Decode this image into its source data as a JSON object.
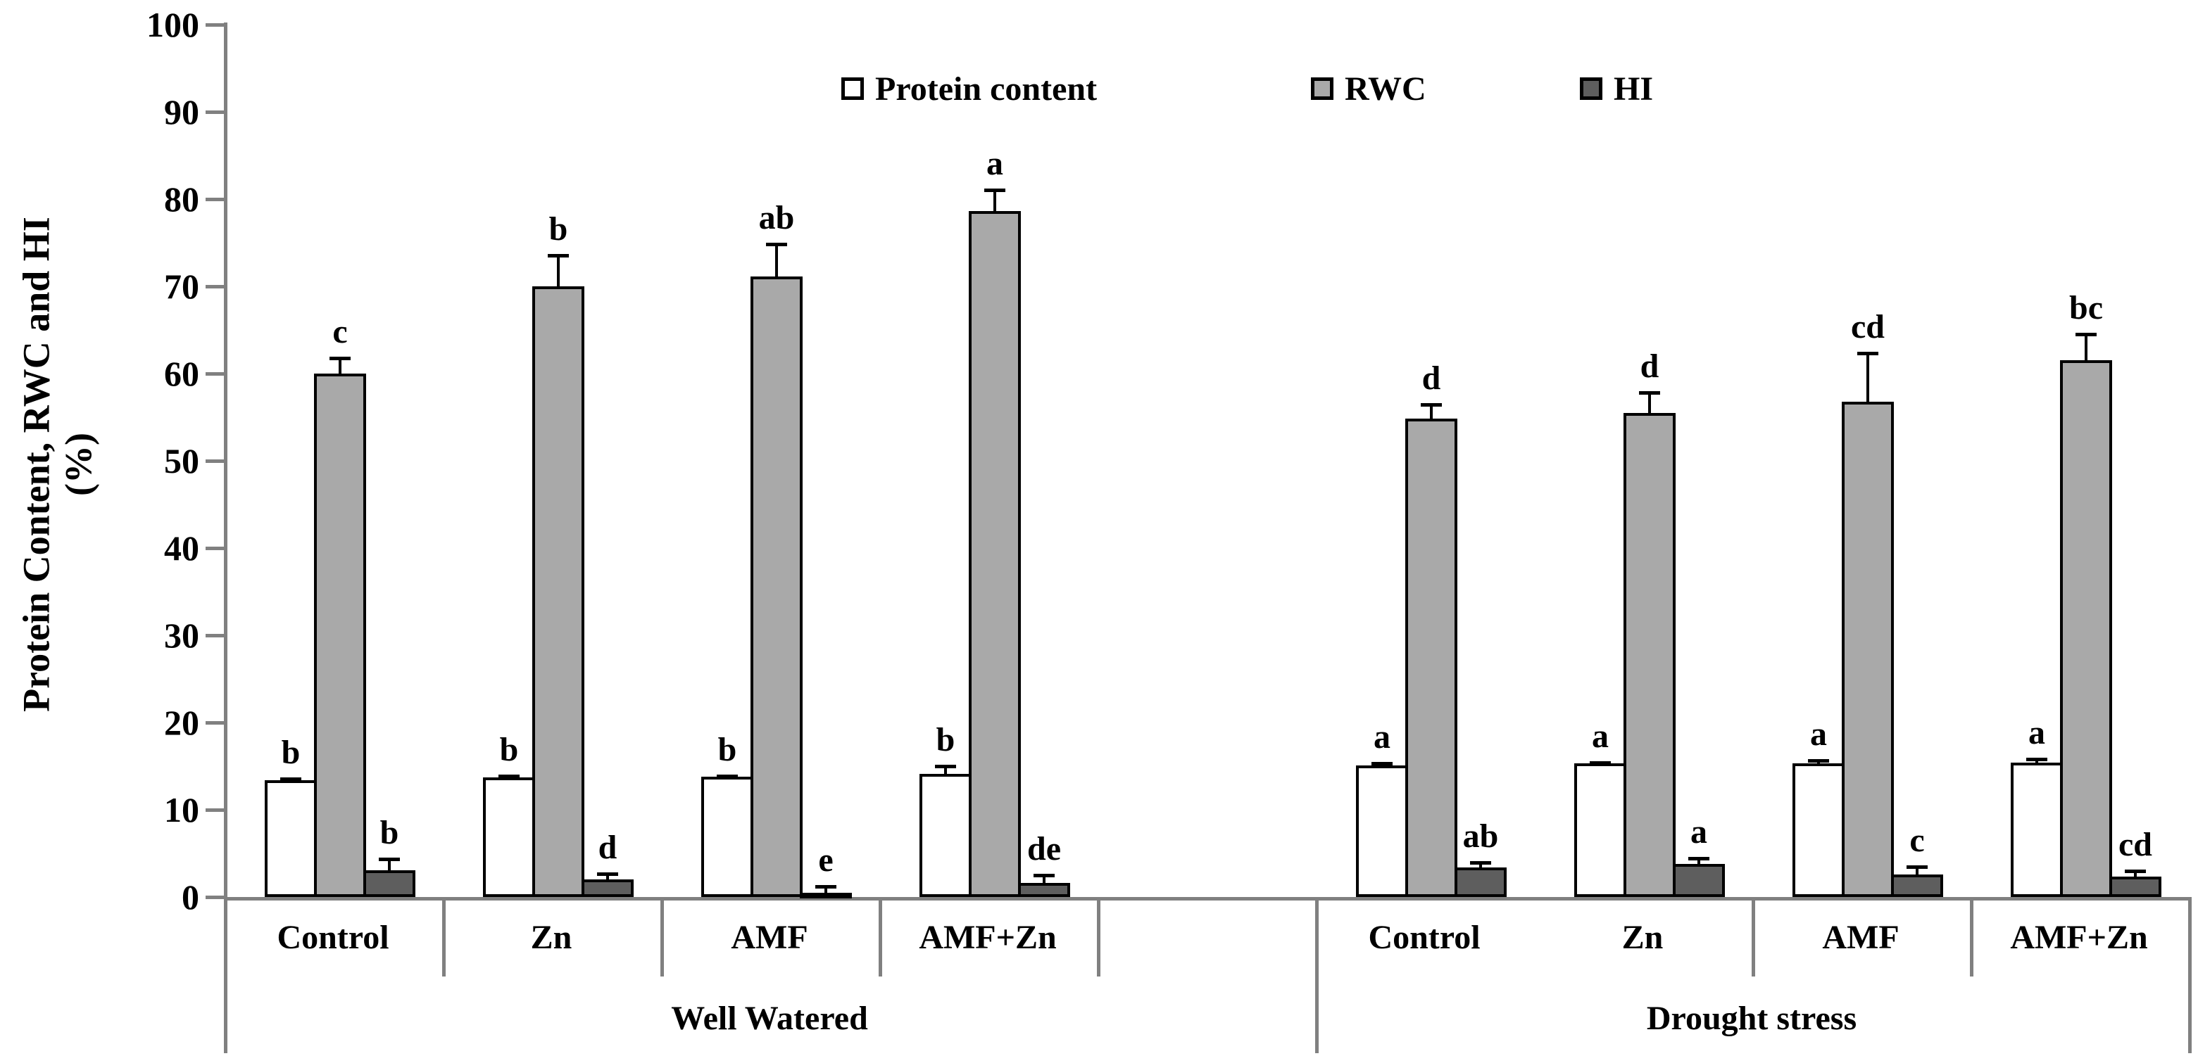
{
  "chart_data": {
    "type": "bar",
    "title": "",
    "ylabel": "Protein Content, RWC and HI",
    "ylabel_unit": "(%)",
    "ylim": [
      0,
      100
    ],
    "ytick_step": 10,
    "yticks": [
      0,
      10,
      20,
      30,
      40,
      50,
      60,
      70,
      80,
      90,
      100
    ],
    "grid": "off",
    "legend_position": "top",
    "legend": [
      {
        "label": "Protein content",
        "color": "#ffffff"
      },
      {
        "label": "RWC",
        "color": "#a9a9a9"
      },
      {
        "label": "HI",
        "color": "#5e5e5e"
      }
    ],
    "axis_color": "#808080",
    "bar_border_color": "#000000",
    "sections": [
      {
        "label": "Well Watered",
        "categories": [
          "Control",
          "Zn",
          "AMF",
          "AMF+Zn"
        ],
        "series": [
          {
            "name": "Protein content",
            "values": [
              13.4,
              13.7,
              13.8,
              14.1
            ],
            "errors": [
              0.3,
              0.3,
              0.2,
              1.1
            ],
            "letters": [
              "b",
              "b",
              "b",
              "b"
            ]
          },
          {
            "name": "RWC",
            "values": [
              60.0,
              70.0,
              71.1,
              78.6
            ],
            "errors": [
              1.9,
              3.7,
              3.9,
              2.6
            ],
            "letters": [
              "c",
              "b",
              "ab",
              "a"
            ]
          },
          {
            "name": "HI",
            "values": [
              3.1,
              2.0,
              0.5,
              1.6
            ],
            "errors": [
              1.4,
              0.8,
              0.9,
              1.1
            ],
            "letters": [
              "b",
              "d",
              "e",
              "de"
            ]
          }
        ]
      },
      {
        "label": "Drought stress",
        "categories": [
          "Control",
          "Zn",
          "AMF",
          "AMF+Zn"
        ],
        "series": [
          {
            "name": "Protein content",
            "values": [
              15.1,
              15.3,
              15.3,
              15.4
            ],
            "errors": [
              0.4,
              0.3,
              0.5,
              0.6
            ],
            "letters": [
              "a",
              "a",
              "a",
              "a"
            ]
          },
          {
            "name": "RWC",
            "values": [
              54.8,
              55.5,
              56.8,
              61.5
            ],
            "errors": [
              1.8,
              2.5,
              5.7,
              3.2
            ],
            "letters": [
              "d",
              "d",
              "cd",
              "bc"
            ]
          },
          {
            "name": "HI",
            "values": [
              3.4,
              3.8,
              2.6,
              2.3
            ],
            "errors": [
              0.7,
              0.8,
              1.0,
              0.85
            ],
            "letters": [
              "ab",
              "a",
              "c",
              "cd"
            ]
          }
        ]
      }
    ]
  }
}
